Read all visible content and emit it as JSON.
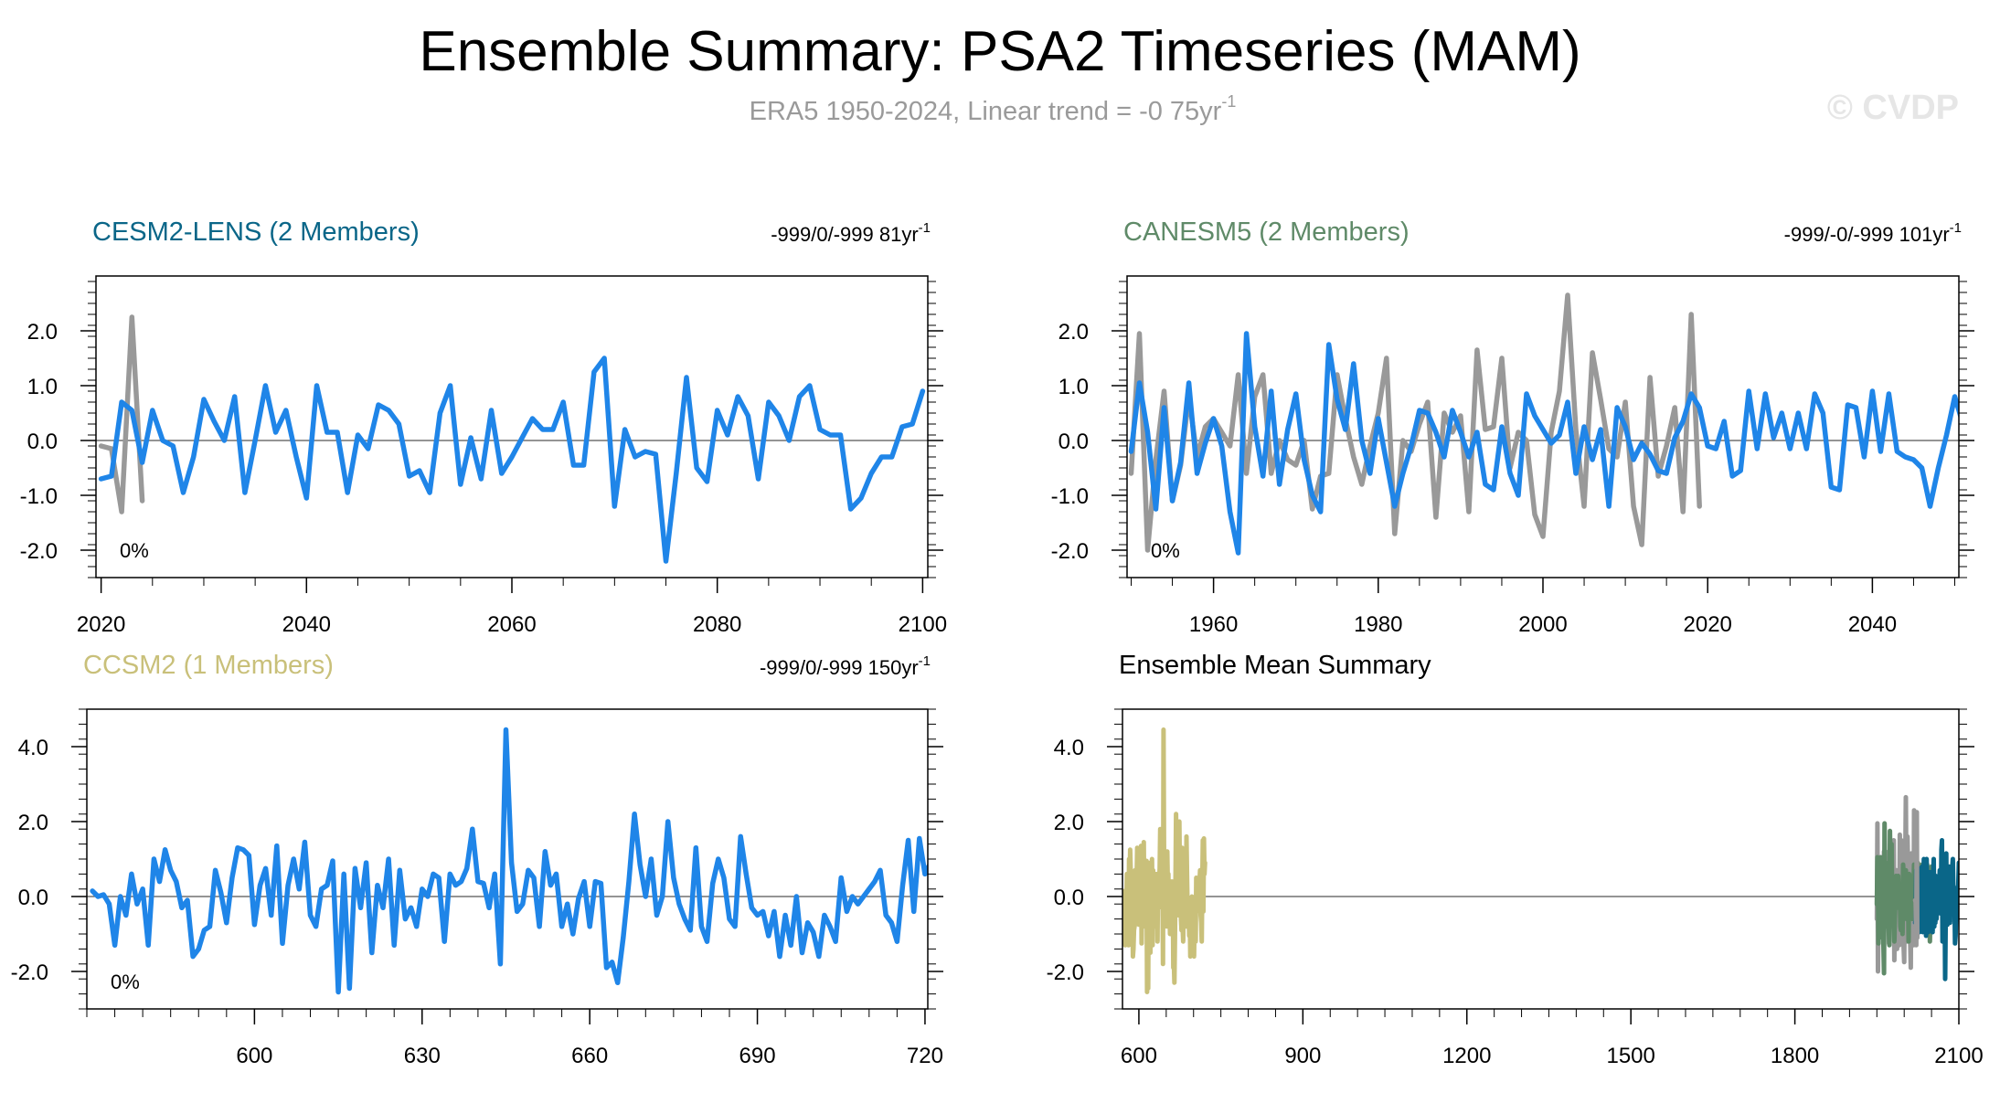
{
  "figure": {
    "title": "Ensemble Summary: PSA2 Timeseries (MAM)",
    "subtitle_main": "ERA5 1950-2024, Linear trend = -0 75yr",
    "subtitle_sup": "-1",
    "watermark": "© CVDP"
  },
  "colors": {
    "obs": "#999999",
    "model": "#1f85e8",
    "zero_line": "#555555",
    "cesm2": "#0a6688",
    "canesm5": "#5f8a68",
    "ccsm2": "#c9c07a"
  },
  "chart_data": [
    {
      "id": "cesm2",
      "type": "line",
      "title": "CESM2-LENS (2 Members)",
      "trend_main": "-999/0/-999 81yr",
      "trend_sup": "-1",
      "percent_label": "0%",
      "xlim": [
        2019.5,
        2100.5
      ],
      "ylim": [
        -2.5,
        3.0
      ],
      "xticks_major": [
        2020,
        2040,
        2060,
        2080,
        2100
      ],
      "xtick_labels": [
        "2020",
        "2040",
        "2060",
        "2080",
        "2100"
      ],
      "xticks_minor_step": 5,
      "yticks_major": [
        -2.0,
        -1.0,
        0.0,
        1.0,
        2.0
      ],
      "ytick_labels": [
        "-2.0",
        "-1.0",
        "0.0",
        "1.0",
        "2.0"
      ],
      "yticks_minor_step": 0.2,
      "series": [
        {
          "role": "obs",
          "x_start": 2020,
          "values": [
            -0.1,
            -0.15,
            -1.3,
            2.25,
            -1.1
          ]
        },
        {
          "role": "model",
          "x_start": 2020,
          "values": [
            -0.7,
            -0.65,
            0.7,
            0.55,
            -0.4,
            0.55,
            0.0,
            -0.1,
            -0.95,
            -0.3,
            0.75,
            0.35,
            0.0,
            0.8,
            -0.95,
            0.0,
            1.0,
            0.15,
            0.55,
            -0.3,
            -1.05,
            1.0,
            0.15,
            0.15,
            -0.95,
            0.1,
            -0.15,
            0.65,
            0.55,
            0.3,
            -0.65,
            -0.55,
            -0.95,
            0.5,
            1.0,
            -0.8,
            0.05,
            -0.7,
            0.55,
            -0.6,
            -0.3,
            0.05,
            0.4,
            0.2,
            0.2,
            0.7,
            -0.45,
            -0.45,
            1.25,
            1.5,
            -1.2,
            0.2,
            -0.3,
            -0.2,
            -0.25,
            -2.2,
            -0.6,
            1.15,
            -0.5,
            -0.75,
            0.55,
            0.1,
            0.8,
            0.45,
            -0.7,
            0.7,
            0.45,
            0.0,
            0.8,
            1.0,
            0.2,
            0.1,
            0.1,
            -1.25,
            -1.05,
            -0.6,
            -0.3,
            -0.3,
            0.25,
            0.3,
            0.9
          ]
        }
      ]
    },
    {
      "id": "canesm5",
      "type": "line",
      "title": "CANESM5 (2 Members)",
      "trend_main": "-999/-0/-999 101yr",
      "trend_sup": "-1",
      "percent_label": "0%",
      "xlim": [
        1949.5,
        2050.5
      ],
      "ylim": [
        -2.5,
        3.0
      ],
      "xticks_major": [
        1960,
        1980,
        2000,
        2020,
        2040
      ],
      "xtick_labels": [
        "1960",
        "1980",
        "2000",
        "2020",
        "2040"
      ],
      "xticks_minor_step": 5,
      "yticks_major": [
        -2.0,
        -1.0,
        0.0,
        1.0,
        2.0
      ],
      "ytick_labels": [
        "-2.0",
        "-1.0",
        "0.0",
        "1.0",
        "2.0"
      ],
      "yticks_minor_step": 0.2,
      "series": [
        {
          "role": "obs",
          "x_start": 1950,
          "values": [
            -0.6,
            1.95,
            -2.0,
            -0.35,
            0.9,
            -1.1,
            -0.45,
            0.8,
            -0.3,
            0.25,
            0.4,
            0.15,
            -0.1,
            1.2,
            -0.6,
            0.8,
            1.2,
            -0.6,
            0.0,
            -0.35,
            -0.45,
            0.0,
            -1.25,
            -0.65,
            -0.6,
            1.2,
            0.4,
            -0.3,
            -0.8,
            -0.1,
            0.5,
            1.5,
            -1.7,
            0.0,
            -0.2,
            0.3,
            0.7,
            -1.4,
            0.5,
            0.15,
            0.45,
            -1.3,
            1.65,
            0.2,
            0.25,
            1.5,
            -0.5,
            0.15,
            0.0,
            -1.35,
            -1.75,
            0.15,
            0.9,
            2.65,
            0.2,
            -1.2,
            1.6,
            0.75,
            -0.15,
            -0.3,
            0.7,
            -1.2,
            -1.9,
            1.15,
            -0.65,
            -0.1,
            0.6,
            -1.3,
            2.3,
            -1.2
          ]
        },
        {
          "role": "model",
          "x_start": 1950,
          "values": [
            -0.2,
            1.05,
            0.15,
            -1.25,
            0.6,
            -1.1,
            -0.4,
            1.05,
            -0.6,
            -0.05,
            0.4,
            -0.1,
            -1.3,
            -2.05,
            1.95,
            0.25,
            -0.65,
            0.9,
            -0.8,
            0.2,
            0.85,
            -0.35,
            -1.0,
            -1.3,
            1.75,
            0.75,
            0.2,
            1.4,
            0.0,
            -0.6,
            0.4,
            -0.4,
            -1.2,
            -0.6,
            -0.1,
            0.55,
            0.5,
            0.15,
            -0.3,
            0.55,
            0.15,
            -0.3,
            0.15,
            -0.8,
            -0.9,
            0.25,
            -0.6,
            -1.0,
            0.85,
            0.45,
            0.2,
            -0.05,
            0.1,
            0.7,
            -0.6,
            0.25,
            -0.35,
            0.2,
            -1.2,
            0.6,
            0.25,
            -0.35,
            -0.05,
            -0.25,
            -0.55,
            -0.6,
            0.05,
            0.35,
            0.85,
            0.6,
            -0.1,
            -0.15,
            0.35,
            -0.65,
            -0.55,
            0.9,
            -0.15,
            0.85,
            0.05,
            0.5,
            -0.15,
            0.5,
            -0.15,
            0.85,
            0.5,
            -0.85,
            -0.9,
            0.65,
            0.6,
            -0.3,
            0.9,
            -0.2,
            0.85,
            -0.2,
            -0.3,
            -0.35,
            -0.5,
            -1.2,
            -0.5,
            0.1,
            0.8,
            0.3
          ]
        }
      ]
    },
    {
      "id": "ccsm2",
      "type": "line",
      "title": "CCSM2 (1 Members)",
      "trend_main": "-999/0/-999 150yr",
      "trend_sup": "-1",
      "percent_label": "0%",
      "xlim": [
        570,
        720.5
      ],
      "ylim": [
        -3.0,
        5.0
      ],
      "xticks_major": [
        600,
        630,
        660,
        690,
        720
      ],
      "xtick_labels": [
        "600",
        "630",
        "660",
        "690",
        "720"
      ],
      "xticks_minor_step": 5,
      "yticks_major": [
        -2.0,
        0.0,
        2.0,
        4.0
      ],
      "ytick_labels": [
        "-2.0",
        "0.0",
        "2.0",
        "4.0"
      ],
      "yticks_minor_step": 0.4,
      "series": [
        {
          "role": "model",
          "x_start": 571,
          "values": [
            0.15,
            0.0,
            0.05,
            -0.2,
            -1.3,
            0.0,
            -0.5,
            0.6,
            -0.2,
            0.2,
            -1.3,
            1.0,
            0.4,
            1.25,
            0.7,
            0.4,
            -0.3,
            -0.1,
            -1.6,
            -1.4,
            -0.9,
            -0.8,
            0.7,
            0.1,
            -0.7,
            0.5,
            1.3,
            1.25,
            1.1,
            -0.75,
            0.3,
            0.75,
            -0.5,
            1.35,
            -1.25,
            0.3,
            1.0,
            0.2,
            1.45,
            -0.5,
            -0.8,
            0.2,
            0.3,
            0.95,
            -2.55,
            0.6,
            -2.45,
            0.75,
            -0.3,
            0.9,
            -1.5,
            0.3,
            -0.3,
            1.0,
            -1.3,
            0.7,
            -0.6,
            -0.3,
            -0.8,
            0.2,
            0.0,
            0.6,
            0.5,
            -1.2,
            0.6,
            0.3,
            0.4,
            0.75,
            1.8,
            0.4,
            0.35,
            -0.3,
            0.6,
            -1.8,
            4.45,
            0.9,
            -0.4,
            -0.2,
            0.7,
            0.5,
            -0.8,
            1.2,
            0.3,
            0.6,
            -0.8,
            -0.2,
            -1.0,
            -0.05,
            0.4,
            -0.8,
            0.4,
            0.35,
            -1.9,
            -1.75,
            -2.3,
            -1.1,
            0.4,
            2.2,
            0.85,
            0.0,
            1.0,
            -0.5,
            0.0,
            2.0,
            0.5,
            -0.2,
            -0.6,
            -0.9,
            1.3,
            -0.8,
            -1.2,
            0.35,
            1.0,
            0.5,
            -0.6,
            -0.8,
            1.6,
            0.6,
            -0.3,
            -0.5,
            -0.4,
            -1.05,
            -0.4,
            -1.6,
            -0.5,
            -1.3,
            0.0,
            -1.5,
            -0.7,
            -0.95,
            -1.6,
            -0.5,
            -0.8,
            -1.2,
            0.5,
            -0.4,
            0.0,
            -0.2,
            0.0,
            0.2,
            0.4,
            0.7,
            -0.5,
            -0.7,
            -1.2,
            0.3,
            1.5,
            -0.4,
            1.55,
            0.6,
            0.9
          ]
        }
      ]
    },
    {
      "id": "summary",
      "type": "line",
      "title": "Ensemble Mean Summary",
      "xlim": [
        570,
        2100
      ],
      "ylim": [
        -3.0,
        5.0
      ],
      "xticks_major": [
        600,
        900,
        1200,
        1500,
        1800,
        2100
      ],
      "xtick_labels": [
        "600",
        "900",
        "1200",
        "1500",
        "1800",
        "2100"
      ],
      "xticks_minor_step": 50,
      "yticks_major": [
        -2.0,
        0.0,
        2.0,
        4.0
      ],
      "ytick_labels": [
        "-2.0",
        "0.0",
        "2.0",
        "4.0"
      ],
      "yticks_minor_step": 0.4,
      "series": [
        {
          "role": "ccsm2",
          "source": "ccsm2.model",
          "x_start": 571
        },
        {
          "role": "obs",
          "source": "canesm5.obs",
          "x_start": 1950
        },
        {
          "role": "canesm5",
          "source": "canesm5.model",
          "x_start": 1950
        },
        {
          "role": "cesm2",
          "source": "cesm2.model",
          "x_start": 2020
        },
        {
          "role": "obs",
          "source": "cesm2.obs",
          "x_start": 2020
        }
      ]
    }
  ]
}
